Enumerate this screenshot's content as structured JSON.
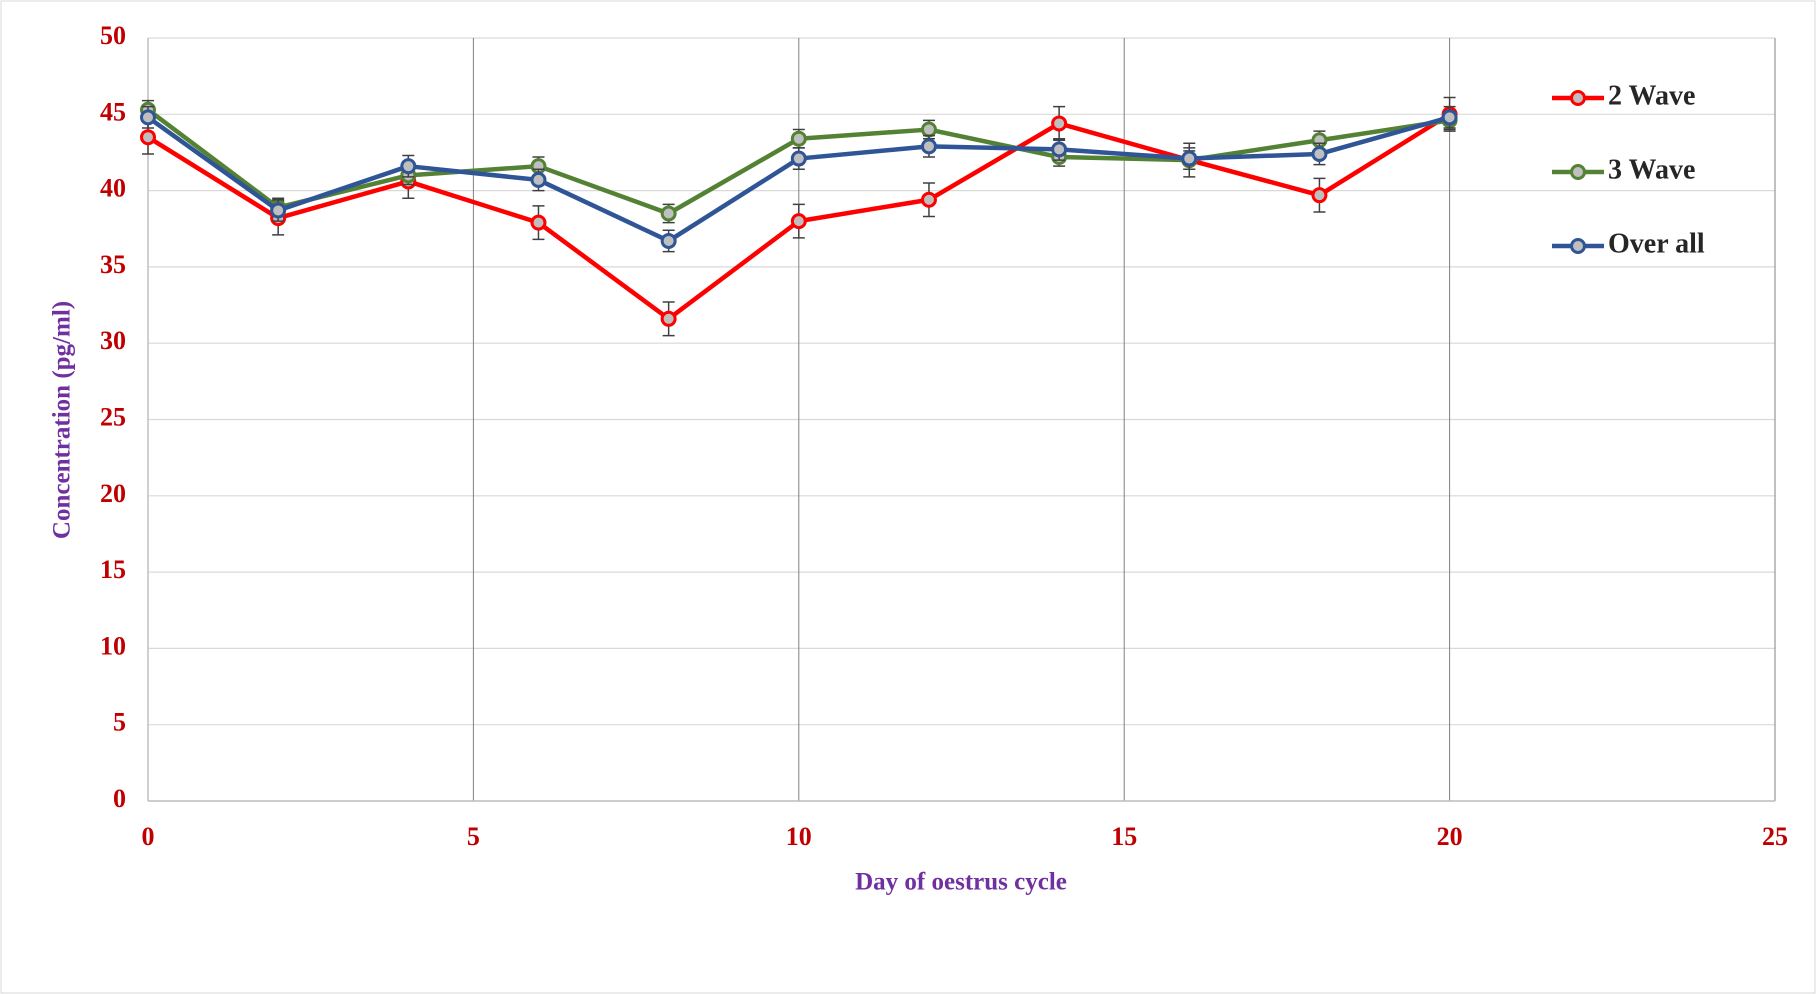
{
  "chart_data": {
    "type": "line",
    "x_label": "Day of oestrus cycle",
    "y_label": "Concentration (pg/ml)",
    "x": [
      0,
      2,
      4,
      6,
      8,
      10,
      12,
      14,
      16,
      18,
      20
    ],
    "series": [
      {
        "name": "2 Wave",
        "color": "#ff0000",
        "values": [
          43.5,
          38.2,
          40.6,
          37.9,
          31.6,
          38.0,
          39.4,
          44.4,
          42.0,
          39.7,
          45.0
        ],
        "errors": [
          1.1,
          1.1,
          1.1,
          1.1,
          1.1,
          1.1,
          1.1,
          1.1,
          1.1,
          1.1,
          1.1
        ]
      },
      {
        "name": "3  Wave",
        "color": "#548235",
        "values": [
          45.3,
          38.9,
          41.0,
          41.6,
          38.5,
          43.4,
          44.0,
          42.2,
          42.0,
          43.3,
          44.6
        ],
        "errors": [
          0.6,
          0.6,
          0.6,
          0.6,
          0.6,
          0.6,
          0.6,
          0.6,
          0.6,
          0.6,
          0.6
        ]
      },
      {
        "name": "Over all",
        "color": "#2f5597",
        "values": [
          44.8,
          38.7,
          41.6,
          40.7,
          36.7,
          42.1,
          42.9,
          42.7,
          42.1,
          42.4,
          44.8
        ],
        "errors": [
          0.7,
          0.7,
          0.7,
          0.7,
          0.7,
          0.7,
          0.7,
          0.7,
          0.7,
          0.7,
          0.7
        ]
      }
    ],
    "xlim": [
      0,
      25
    ],
    "xticks": [
      0,
      5,
      10,
      15,
      20,
      25
    ],
    "ylim": [
      0,
      50
    ],
    "yticks": [
      0,
      5,
      10,
      15,
      20,
      25,
      30,
      35,
      40,
      45,
      50
    ],
    "grid": true,
    "legend": "right"
  }
}
